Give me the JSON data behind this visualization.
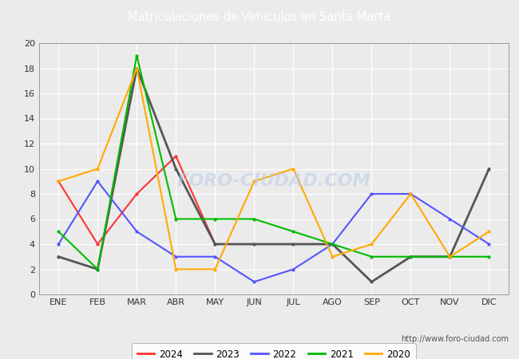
{
  "title": "Matriculaciones de Vehiculos en Santa Marta",
  "title_color": "#ffffff",
  "header_bg": "#4472c4",
  "months": [
    "ENE",
    "FEB",
    "MAR",
    "ABR",
    "MAY",
    "JUN",
    "JUL",
    "AGO",
    "SEP",
    "OCT",
    "NOV",
    "DIC"
  ],
  "series_order": [
    "2024",
    "2023",
    "2022",
    "2021",
    "2020"
  ],
  "series": {
    "2024": {
      "values": [
        9,
        4,
        8,
        11,
        4,
        null,
        null,
        null,
        null,
        null,
        null,
        null
      ],
      "color": "#ff3333",
      "linewidth": 1.5
    },
    "2023": {
      "values": [
        3,
        2,
        18,
        10,
        4,
        4,
        4,
        4,
        1,
        3,
        3,
        10
      ],
      "color": "#555555",
      "linewidth": 2.0
    },
    "2022": {
      "values": [
        4,
        9,
        5,
        3,
        3,
        1,
        2,
        4,
        8,
        8,
        6,
        4
      ],
      "color": "#5555ff",
      "linewidth": 1.5
    },
    "2021": {
      "values": [
        5,
        2,
        19,
        6,
        6,
        6,
        5,
        4,
        3,
        3,
        3,
        3
      ],
      "color": "#00bb00",
      "linewidth": 1.5
    },
    "2020": {
      "values": [
        9,
        10,
        18,
        2,
        2,
        9,
        10,
        3,
        4,
        8,
        3,
        5
      ],
      "color": "#ffaa00",
      "linewidth": 1.5
    }
  },
  "ylim": [
    0,
    20
  ],
  "yticks": [
    0,
    2,
    4,
    6,
    8,
    10,
    12,
    14,
    16,
    18,
    20
  ],
  "plot_bg": "#ebebeb",
  "grid_color": "#ffffff",
  "watermark": "FORO-CIUDAD.COM",
  "url": "http://www.foro-ciudad.com",
  "legend_years": [
    "2024",
    "2023",
    "2022",
    "2021",
    "2020"
  ],
  "legend_colors": [
    "#ff3333",
    "#555555",
    "#5555ff",
    "#00bb00",
    "#ffaa00"
  ],
  "fig_bg": "#ebebeb"
}
